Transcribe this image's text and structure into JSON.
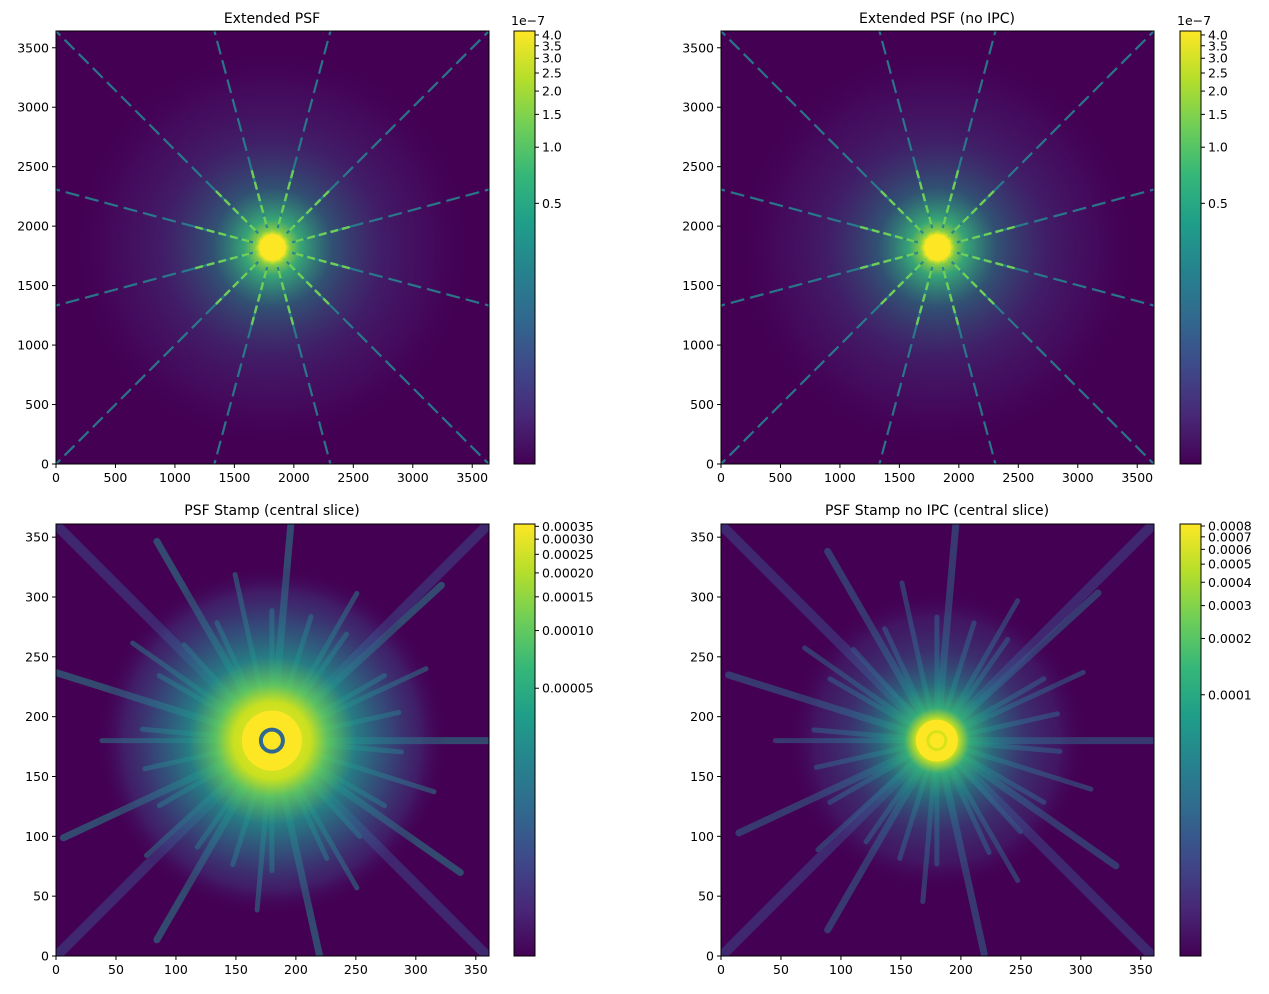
{
  "colormap_stops": [
    "#440154",
    "#482878",
    "#3e4989",
    "#31688e",
    "#26828e",
    "#1f9e89",
    "#35b779",
    "#6ece58",
    "#b5de2b",
    "#fde725"
  ],
  "chart_data": [
    {
      "id": "extended-psf",
      "type": "heatmap",
      "title": "Extended PSF",
      "x_ticks": [
        "0",
        "500",
        "1000",
        "1500",
        "2000",
        "2500",
        "3000",
        "3500"
      ],
      "y_ticks": [
        "0",
        "500",
        "1000",
        "1500",
        "2000",
        "2500",
        "3000",
        "3500"
      ],
      "xlim": [
        0,
        3641
      ],
      "ylim": [
        0,
        3641
      ],
      "center": [
        1820,
        1820
      ],
      "spike_angles_deg": [
        30,
        60,
        90,
        120,
        150,
        180,
        210,
        240,
        270,
        300,
        330,
        360
      ],
      "colorbar": {
        "scale": "log",
        "offset_label": "1e−7",
        "ticks": [
          "4.0",
          "3.5",
          "3.0",
          "2.5",
          "2.0",
          "1.5",
          "1.0",
          "0.5"
        ],
        "tick_values": [
          4.0,
          3.5,
          3.0,
          2.5,
          2.0,
          1.5,
          1.0,
          0.5
        ],
        "vmax": 4.2,
        "vmin": 0.02
      }
    },
    {
      "id": "extended-psf-no-ipc",
      "type": "heatmap",
      "title": "Extended PSF (no IPC)",
      "x_ticks": [
        "0",
        "500",
        "1000",
        "1500",
        "2000",
        "2500",
        "3000",
        "3500"
      ],
      "y_ticks": [
        "0",
        "500",
        "1000",
        "1500",
        "2000",
        "2500",
        "3000",
        "3500"
      ],
      "xlim": [
        0,
        3641
      ],
      "ylim": [
        0,
        3641
      ],
      "center": [
        1820,
        1820
      ],
      "spike_angles_deg": [
        30,
        60,
        90,
        120,
        150,
        180,
        210,
        240,
        270,
        300,
        330,
        360
      ],
      "colorbar": {
        "scale": "log",
        "offset_label": "1e−7",
        "ticks": [
          "4.0",
          "3.5",
          "3.0",
          "2.5",
          "2.0",
          "1.5",
          "1.0",
          "0.5"
        ],
        "tick_values": [
          4.0,
          3.5,
          3.0,
          2.5,
          2.0,
          1.5,
          1.0,
          0.5
        ],
        "vmax": 4.2,
        "vmin": 0.02
      }
    },
    {
      "id": "psf-stamp",
      "type": "heatmap",
      "title": "PSF Stamp (central slice)",
      "x_ticks": [
        "0",
        "50",
        "100",
        "150",
        "200",
        "250",
        "300",
        "350"
      ],
      "y_ticks": [
        "0",
        "50",
        "100",
        "150",
        "200",
        "250",
        "300",
        "350"
      ],
      "xlim": [
        0,
        361
      ],
      "ylim": [
        0,
        361
      ],
      "center": [
        180,
        180
      ],
      "colorbar": {
        "scale": "log",
        "offset_label": "",
        "ticks": [
          "0.00035",
          "0.00030",
          "0.00025",
          "0.00020",
          "0.00015",
          "0.00010",
          "0.00005"
        ],
        "tick_values": [
          0.00035,
          0.0003,
          0.00025,
          0.0002,
          0.00015,
          0.0001,
          5e-05
        ],
        "vmax": 0.00036,
        "vmin": 2e-06
      }
    },
    {
      "id": "psf-stamp-no-ipc",
      "type": "heatmap",
      "title": "PSF Stamp no IPC (central slice)",
      "x_ticks": [
        "0",
        "50",
        "100",
        "150",
        "200",
        "250",
        "300",
        "350"
      ],
      "y_ticks": [
        "0",
        "50",
        "100",
        "150",
        "200",
        "250",
        "300",
        "350"
      ],
      "xlim": [
        0,
        361
      ],
      "ylim": [
        0,
        361
      ],
      "center": [
        180,
        180
      ],
      "colorbar": {
        "scale": "log",
        "offset_label": "",
        "ticks": [
          "0.0008",
          "0.0007",
          "0.0006",
          "0.0005",
          "0.0004",
          "0.0003",
          "0.0002",
          "0.0001"
        ],
        "tick_values": [
          0.0008,
          0.0007,
          0.0006,
          0.0005,
          0.0004,
          0.0003,
          0.0002,
          0.0001
        ],
        "vmax": 0.00082,
        "vmin": 4e-06
      }
    }
  ]
}
